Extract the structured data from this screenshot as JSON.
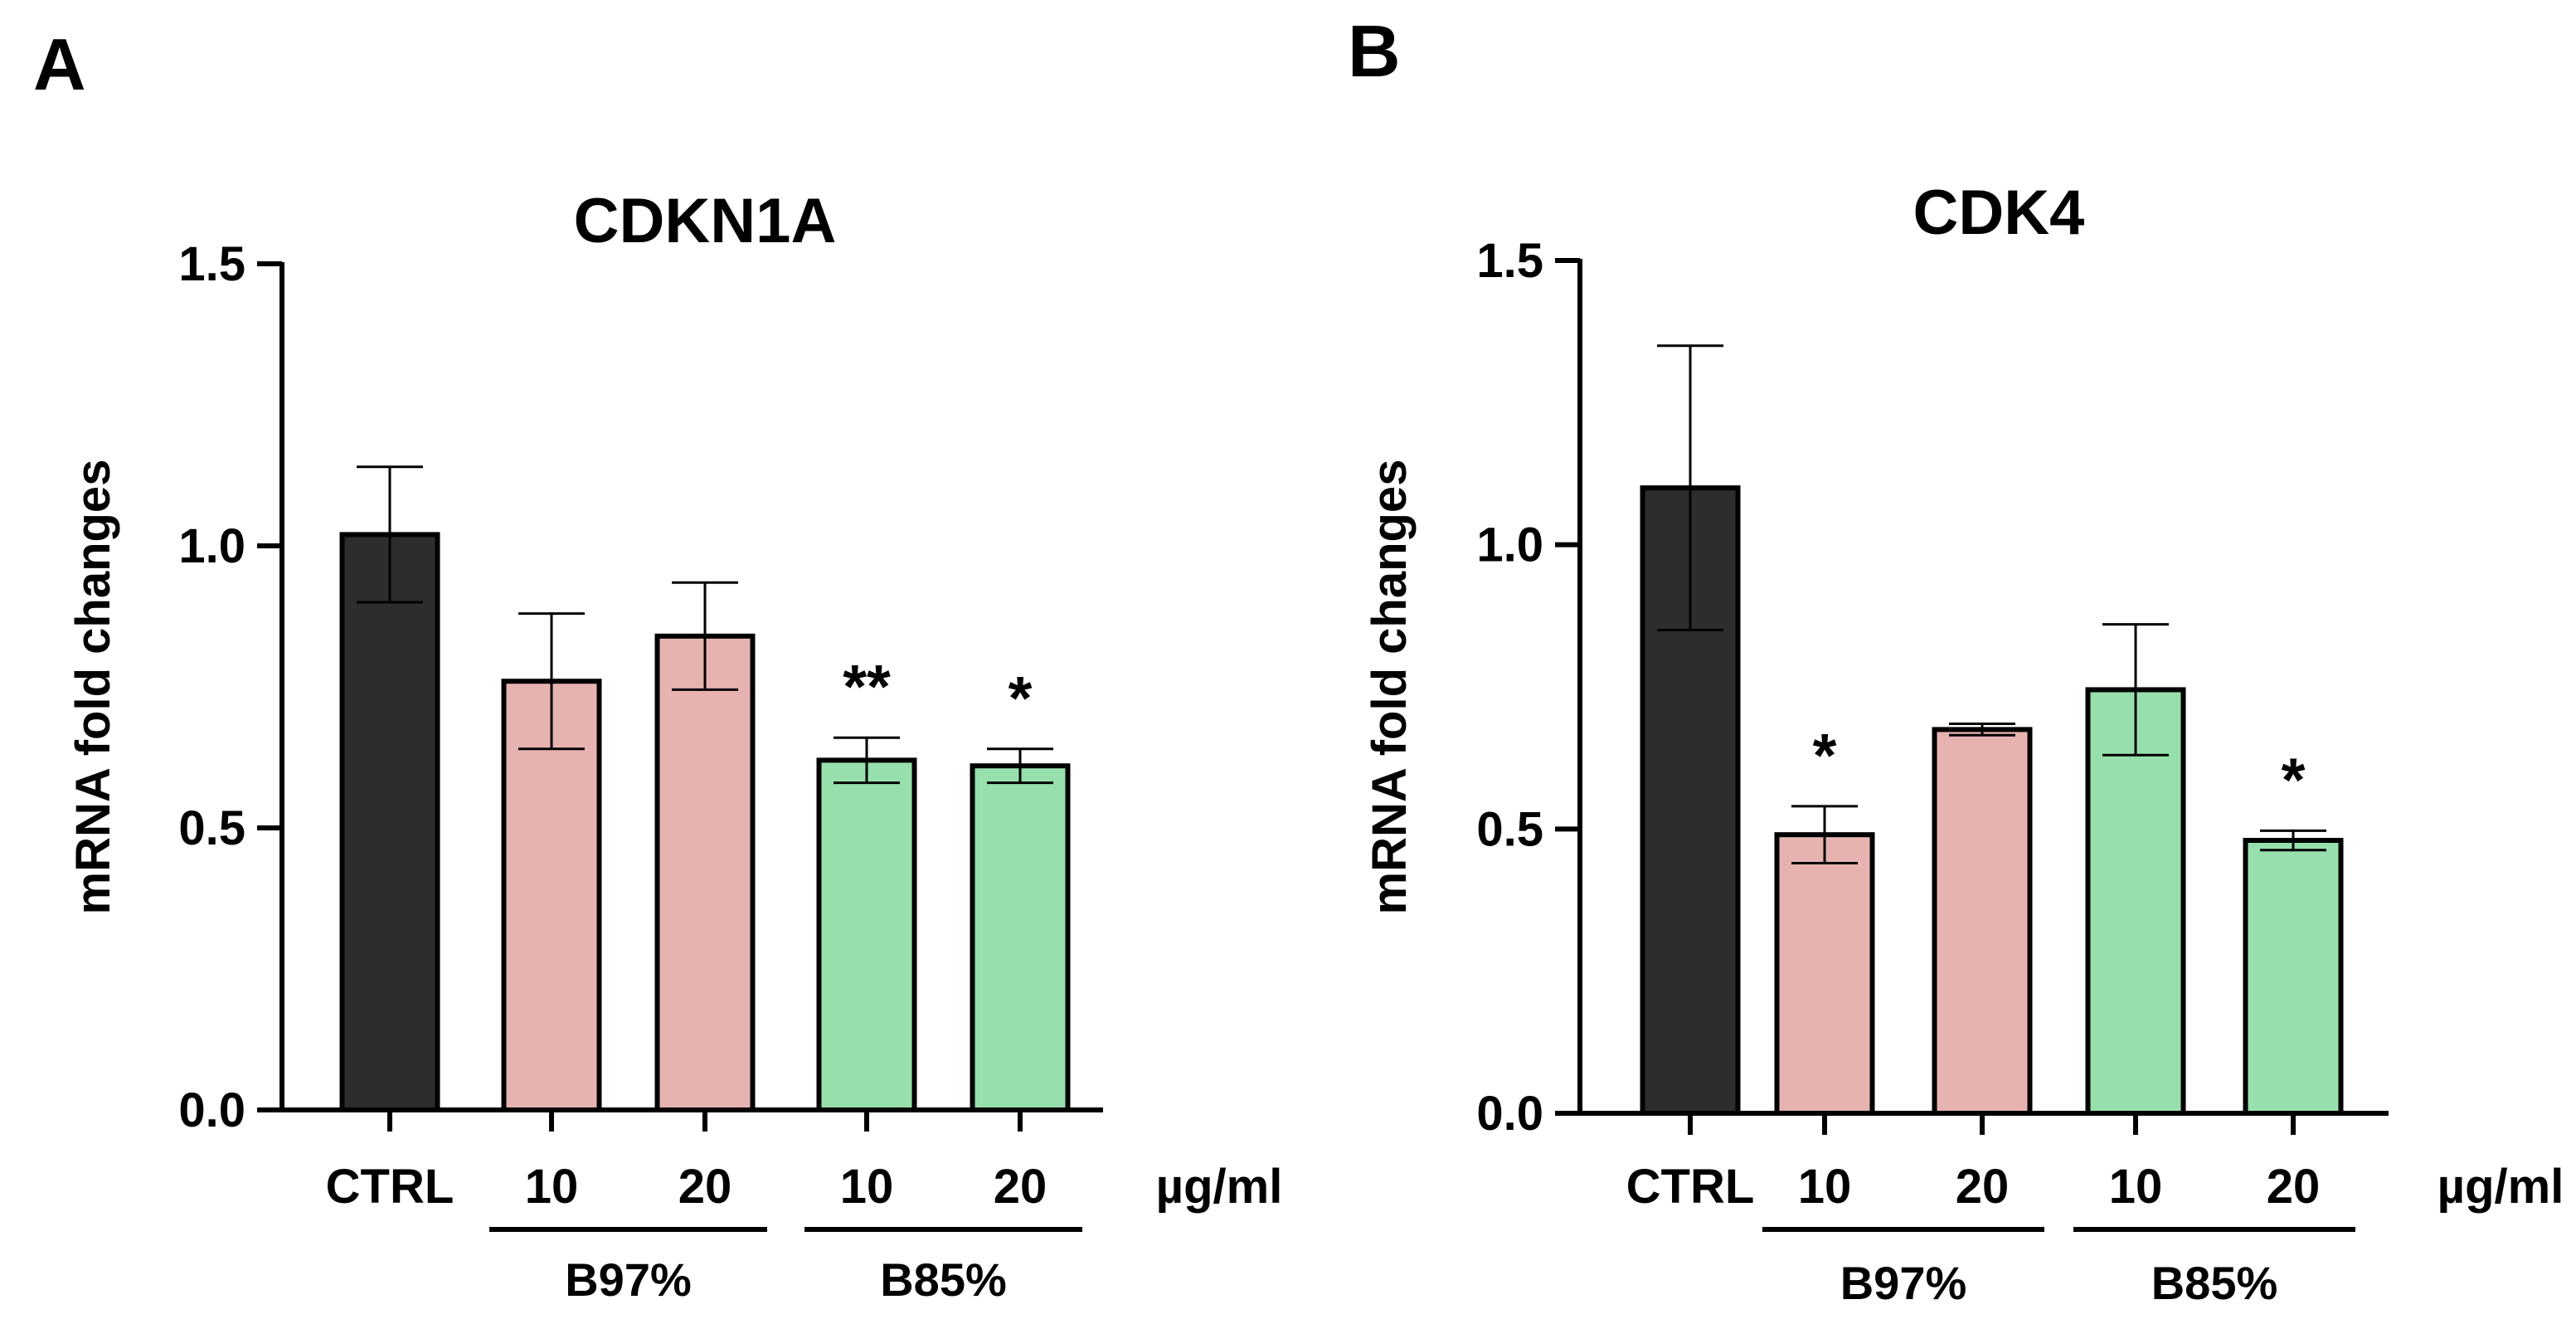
{
  "colors": {
    "ctrl": "#2d2d2d",
    "b97": "#e6b3b0",
    "b85": "#97e0ad",
    "axis": "#000000"
  },
  "unit_label": "µg/ml",
  "chart_data": [
    {
      "panel_label": "A",
      "title": "CDKN1A",
      "type": "bar",
      "ylabel": "mRNA fold changes",
      "ylim": [
        0,
        1.5
      ],
      "yticks": [
        "0.0",
        "0.5",
        "1.0",
        "1.5"
      ],
      "categories": [
        "CTRL",
        "10",
        "20",
        "10",
        "20"
      ],
      "groups": [
        {
          "label": "B97%",
          "members": [
            1,
            2
          ]
        },
        {
          "label": "B85%",
          "members": [
            3,
            4
          ]
        }
      ],
      "values": [
        1.02,
        0.76,
        0.84,
        0.62,
        0.61
      ],
      "errors": [
        0.12,
        0.12,
        0.095,
        0.04,
        0.03
      ],
      "fill_keys": [
        "ctrl",
        "b97",
        "b97",
        "b85",
        "b85"
      ],
      "significance": [
        "",
        "",
        "",
        "**",
        "*"
      ]
    },
    {
      "panel_label": "B",
      "title": "CDK4",
      "type": "bar",
      "ylabel": "mRNA fold changes",
      "ylim": [
        0,
        1.5
      ],
      "yticks": [
        "0.0",
        "0.5",
        "1.0",
        "1.5"
      ],
      "categories": [
        "CTRL",
        "10",
        "20",
        "10",
        "20"
      ],
      "groups": [
        {
          "label": "B97%",
          "members": [
            1,
            2
          ]
        },
        {
          "label": "B85%",
          "members": [
            3,
            4
          ]
        }
      ],
      "values": [
        1.1,
        0.49,
        0.675,
        0.745,
        0.48
      ],
      "errors": [
        0.25,
        0.05,
        0.01,
        0.115,
        0.017
      ],
      "fill_keys": [
        "ctrl",
        "b97",
        "b97",
        "b85",
        "b85"
      ],
      "significance": [
        "",
        "*",
        "",
        "",
        "*"
      ]
    }
  ]
}
